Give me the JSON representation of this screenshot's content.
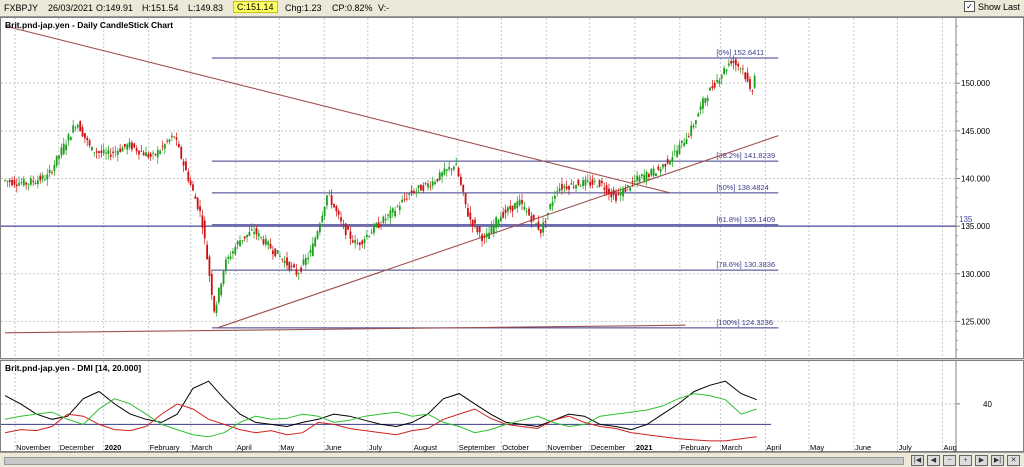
{
  "header": {
    "symbol": "FXBPJY",
    "date": "26/03/2021",
    "open": "O:149.91",
    "high": "H:151.54",
    "low": "L:149.83",
    "close": "C:151.14",
    "change": "Chg:1.23",
    "change_pct": "CP:0.82%",
    "volume": "V:-",
    "show_last_label": "Show Last"
  },
  "main_title": "Brit.pnd-jap.yen - Daily CandleStick Chart",
  "dmi_title": "Brit.pnd-jap.yen - DMI [14, 20.000]",
  "chart_data": {
    "type": "candlestick",
    "price_axis": {
      "ylim": [
        122,
        156
      ],
      "ticks": [
        125,
        130,
        135,
        140,
        145,
        150
      ],
      "labels": [
        "125.000",
        "130.000",
        "135.000",
        "140.000",
        "145.000",
        "150.000"
      ]
    },
    "x_labels": [
      "November",
      "December",
      "2020",
      "February",
      "March",
      "April",
      "May",
      "June",
      "July",
      "August",
      "September",
      "October",
      "November",
      "December",
      "2021",
      "February",
      "March",
      "April",
      "May",
      "June",
      "July",
      "Aug"
    ],
    "price_path": [
      [
        "2019-10-25",
        139.8
      ],
      [
        "2019-11-10",
        139.5
      ],
      [
        "2019-11-25",
        140.2
      ],
      [
        "2019-12-10",
        144.5
      ],
      [
        "2019-12-15",
        146.0
      ],
      [
        "2019-12-25",
        143.0
      ],
      [
        "2020-01-05",
        142.5
      ],
      [
        "2020-01-20",
        143.5
      ],
      [
        "2020-02-05",
        142.2
      ],
      [
        "2020-02-20",
        144.5
      ],
      [
        "2020-03-01",
        140.0
      ],
      [
        "2020-03-10",
        136.0
      ],
      [
        "2020-03-19",
        126.0
      ],
      [
        "2020-03-26",
        131.0
      ],
      [
        "2020-04-05",
        133.5
      ],
      [
        "2020-04-15",
        134.5
      ],
      [
        "2020-04-25",
        133.0
      ],
      [
        "2020-05-05",
        131.5
      ],
      [
        "2020-05-15",
        130.0
      ],
      [
        "2020-05-25",
        132.5
      ],
      [
        "2020-06-05",
        138.5
      ],
      [
        "2020-06-15",
        135.0
      ],
      [
        "2020-06-25",
        133.0
      ],
      [
        "2020-07-05",
        134.5
      ],
      [
        "2020-07-20",
        136.5
      ],
      [
        "2020-08-01",
        138.5
      ],
      [
        "2020-08-15",
        139.5
      ],
      [
        "2020-09-01",
        141.5
      ],
      [
        "2020-09-10",
        136.0
      ],
      [
        "2020-09-21",
        133.5
      ],
      [
        "2020-10-01",
        136.0
      ],
      [
        "2020-10-15",
        137.5
      ],
      [
        "2020-10-30",
        134.5
      ],
      [
        "2020-11-10",
        139.0
      ],
      [
        "2020-11-25",
        139.5
      ],
      [
        "2020-12-10",
        139.5
      ],
      [
        "2020-12-20",
        138.0
      ],
      [
        "2021-01-05",
        140.0
      ],
      [
        "2021-01-20",
        141.0
      ],
      [
        "2021-02-01",
        143.0
      ],
      [
        "2021-02-10",
        145.0
      ],
      [
        "2021-02-20",
        148.5
      ],
      [
        "2021-03-01",
        150.5
      ],
      [
        "2021-03-10",
        152.4
      ],
      [
        "2021-03-18",
        151.5
      ],
      [
        "2021-03-24",
        148.8
      ],
      [
        "2021-03-26",
        151.1
      ]
    ],
    "fibonacci": [
      {
        "label": "[0%] 152.6411",
        "value": 152.6411
      },
      {
        "label": "[38.2%] 141.8239",
        "value": 141.8239
      },
      {
        "label": "[50%] 138.4824",
        "value": 138.4824
      },
      {
        "label": "[61.8%] 135.1409",
        "value": 135.1409
      },
      {
        "label": "[78.6%] 130.3836",
        "value": 130.3836
      },
      {
        "label": "[100%] 124.3236",
        "value": 124.3236
      }
    ],
    "horizontal_line": {
      "label": "135",
      "value": 135.0
    },
    "trendlines": [
      {
        "name": "downtrend",
        "color": "#a05050",
        "from": [
          "2019-10-25",
          156.0
        ],
        "to": [
          "2021-01-25",
          138.5
        ]
      },
      {
        "name": "uptrend",
        "color": "#a05050",
        "from": [
          "2020-03-19",
          124.3
        ],
        "to": [
          "2021-04-10",
          144.5
        ]
      },
      {
        "name": "base",
        "color": "#a05050",
        "from": [
          "2019-10-25",
          123.8
        ],
        "to": [
          "2021-02-05",
          124.6
        ]
      }
    ],
    "dmi": {
      "ylim": [
        0,
        70
      ],
      "ticks": [
        40
      ],
      "threshold": 20,
      "series": [
        {
          "color": "#000000",
          "values": [
            48,
            40,
            30,
            25,
            28,
            45,
            52,
            40,
            30,
            25,
            22,
            30,
            55,
            62,
            45,
            30,
            22,
            20,
            18,
            22,
            25,
            30,
            28,
            24,
            20,
            18,
            22,
            30,
            45,
            50,
            40,
            30,
            22,
            20,
            18,
            24,
            30,
            28,
            20,
            18,
            15,
            20,
            30,
            40,
            52,
            58,
            62,
            50,
            44
          ]
        },
        {
          "color": "#d02020",
          "values": [
            12,
            15,
            14,
            18,
            30,
            28,
            20,
            15,
            14,
            18,
            30,
            40,
            35,
            25,
            20,
            15,
            12,
            14,
            10,
            12,
            22,
            20,
            16,
            14,
            12,
            10,
            14,
            16,
            25,
            30,
            35,
            26,
            20,
            18,
            16,
            24,
            28,
            22,
            18,
            16,
            12,
            10,
            8,
            6,
            5,
            4,
            4,
            6,
            8
          ]
        },
        {
          "color": "#30c030",
          "values": [
            25,
            28,
            30,
            32,
            25,
            20,
            35,
            45,
            40,
            30,
            20,
            15,
            10,
            8,
            12,
            22,
            28,
            25,
            26,
            30,
            28,
            22,
            24,
            28,
            30,
            32,
            28,
            30,
            22,
            18,
            12,
            15,
            20,
            24,
            28,
            22,
            18,
            20,
            28,
            30,
            32,
            34,
            38,
            45,
            50,
            48,
            44,
            30,
            35
          ]
        }
      ]
    }
  }
}
